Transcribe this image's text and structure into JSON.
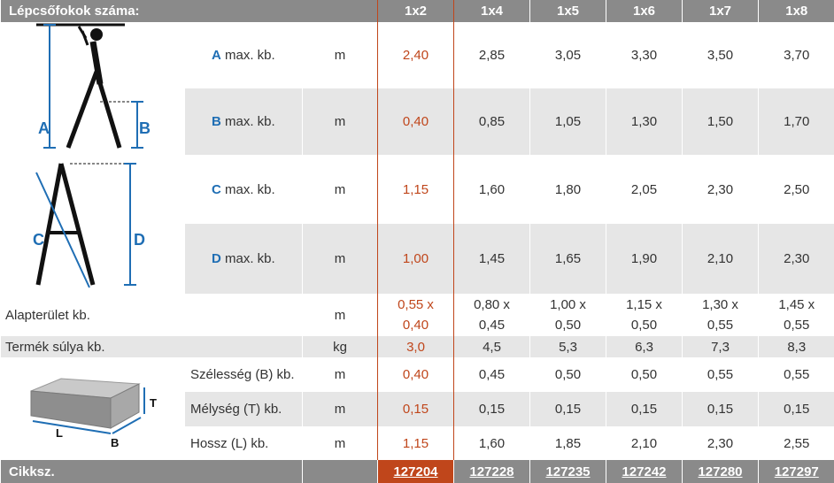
{
  "header": {
    "title": "Lépcsőfokok száma:",
    "models": [
      "1x2",
      "1x4",
      "1x5",
      "1x6",
      "1x7",
      "1x8"
    ]
  },
  "ladder_diagram": {
    "labels": [
      "A",
      "B",
      "C",
      "D"
    ]
  },
  "box_diagram": {
    "labels": [
      "T",
      "L",
      "B"
    ]
  },
  "rows": {
    "a": {
      "letter": "A",
      "label": " max. kb.",
      "unit": "m",
      "values": [
        "2,40",
        "2,85",
        "3,05",
        "3,30",
        "3,50",
        "3,70"
      ]
    },
    "b": {
      "letter": "B",
      "label": " max. kb.",
      "unit": "m",
      "values": [
        "0,40",
        "0,85",
        "1,05",
        "1,30",
        "1,50",
        "1,70"
      ]
    },
    "c": {
      "letter": "C",
      "label": " max. kb.",
      "unit": "m",
      "values": [
        "1,15",
        "1,60",
        "1,80",
        "2,05",
        "2,30",
        "2,50"
      ]
    },
    "d": {
      "letter": "D",
      "label": " max. kb.",
      "unit": "m",
      "values": [
        "1,00",
        "1,45",
        "1,65",
        "1,90",
        "2,10",
        "2,30"
      ]
    },
    "footprint": {
      "label": "Alapterület kb.",
      "unit": "m",
      "values": [
        [
          "0,55 x",
          "0,40"
        ],
        [
          "0,80 x",
          "0,45"
        ],
        [
          "1,00 x",
          "0,50"
        ],
        [
          "1,15 x",
          "0,50"
        ],
        [
          "1,30 x",
          "0,55"
        ],
        [
          "1,45 x",
          "0,55"
        ]
      ]
    },
    "weight": {
      "label": "Termék súlya kb.",
      "unit": "kg",
      "values": [
        "3,0",
        "4,5",
        "5,3",
        "6,3",
        "7,3",
        "8,3"
      ]
    },
    "width": {
      "label": "Szélesség (B) kb.",
      "unit": "m",
      "values": [
        "0,40",
        "0,45",
        "0,50",
        "0,50",
        "0,55",
        "0,55"
      ]
    },
    "depth": {
      "label": "Mélység (T) kb.",
      "unit": "m",
      "values": [
        "0,15",
        "0,15",
        "0,15",
        "0,15",
        "0,15",
        "0,15"
      ]
    },
    "length": {
      "label": "Hossz (L) kb.",
      "unit": "m",
      "values": [
        "1,15",
        "1,60",
        "1,85",
        "2,10",
        "2,30",
        "2,55"
      ]
    }
  },
  "footer": {
    "title": "Cikksz.",
    "codes": [
      "127204",
      "127228",
      "127235",
      "127242",
      "127280",
      "127297"
    ]
  },
  "colors": {
    "accent": "#c0461b",
    "letter_blue": "#1f6eb4",
    "header_gray": "#8a8a8a",
    "row_gray": "#e6e6e6"
  }
}
